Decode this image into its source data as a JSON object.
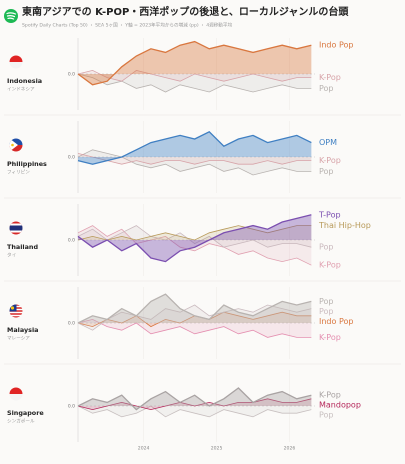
{
  "header": {
    "title": "東南アジアでの K-POP・西洋ポップの後退と、ローカルジャンルの台頭",
    "subtitle": "Spotify Daily Charts (Top 50) ・ SEA 5ヶ国 ・ Y軸 = 2023年平均からの増減 (pp) ・ 4週移動平均"
  },
  "chart_data": [
    {
      "type": "line",
      "country": "Indonesia",
      "country_ja": "インドネシア",
      "x": [
        2023.1,
        2023.3,
        2023.5,
        2023.7,
        2023.9,
        2024.1,
        2024.3,
        2024.5,
        2024.7,
        2024.9,
        2025.1,
        2025.3,
        2025.5,
        2025.7,
        2025.9,
        2026.1,
        2026.3
      ],
      "xlim": [
        2023.1,
        2026.35
      ],
      "ylim": [
        -10,
        10
      ],
      "yticks": [
        {
          "value": 0,
          "label": "0.0"
        }
      ],
      "series": [
        {
          "name": "Indo Pop",
          "color": "#d9773f",
          "values": [
            0,
            -3,
            -2,
            2,
            5,
            7,
            6,
            8,
            9,
            7,
            8,
            7,
            6,
            7,
            8,
            7,
            8
          ]
        },
        {
          "name": "K-Pop",
          "color": "#d7a3a8",
          "values": [
            0,
            1,
            -1,
            -2,
            1,
            0,
            -1,
            -2,
            0,
            -1,
            -2,
            -1,
            0,
            -1,
            -2,
            -1,
            -1
          ]
        },
        {
          "name": "Pop",
          "color": "#b8b3b0",
          "values": [
            0,
            -1,
            -3,
            -2,
            -4,
            -3,
            -5,
            -3,
            -4,
            -5,
            -3,
            -4,
            -5,
            -4,
            -3,
            -4,
            -4
          ]
        }
      ]
    },
    {
      "type": "line",
      "country": "Philippines",
      "country_ja": "フィリピン",
      "x": [
        2023.1,
        2023.3,
        2023.5,
        2023.7,
        2023.9,
        2024.1,
        2024.3,
        2024.5,
        2024.7,
        2024.9,
        2025.1,
        2025.3,
        2025.5,
        2025.7,
        2025.9,
        2026.1,
        2026.3
      ],
      "xlim": [
        2023.1,
        2026.35
      ],
      "ylim": [
        -10,
        10
      ],
      "yticks": [
        {
          "value": 0,
          "label": "0.0"
        }
      ],
      "series": [
        {
          "name": "OPM",
          "color": "#3f7fc2",
          "values": [
            -1,
            -2,
            -1,
            0,
            2,
            4,
            5,
            6,
            5,
            7,
            3,
            5,
            6,
            4,
            5,
            6,
            4
          ]
        },
        {
          "name": "K-Pop",
          "color": "#d7a3a8",
          "values": [
            1,
            0,
            -1,
            -2,
            -1,
            -2,
            -1,
            -1,
            -2,
            -1,
            -1,
            -2,
            -2,
            -1,
            -2,
            -1,
            -1
          ]
        },
        {
          "name": "Pop",
          "color": "#b8b3b0",
          "values": [
            0,
            2,
            1,
            0,
            -2,
            -3,
            -2,
            -4,
            -3,
            -2,
            -4,
            -3,
            -5,
            -4,
            -3,
            -4,
            -4
          ]
        }
      ]
    },
    {
      "type": "line",
      "country": "Thailand",
      "country_ja": "タイ",
      "x": [
        2023.1,
        2023.3,
        2023.5,
        2023.7,
        2023.9,
        2024.1,
        2024.3,
        2024.5,
        2024.7,
        2024.9,
        2025.1,
        2025.3,
        2025.5,
        2025.7,
        2025.9,
        2026.1,
        2026.3
      ],
      "xlim": [
        2023.1,
        2026.35
      ],
      "ylim": [
        -10,
        10
      ],
      "yticks": [
        {
          "value": 0,
          "label": "0.0"
        }
      ],
      "series": [
        {
          "name": "T-Pop",
          "color": "#7b4fb0",
          "values": [
            1,
            -2,
            0,
            -3,
            -1,
            -5,
            -6,
            -3,
            -2,
            0,
            2,
            3,
            4,
            3,
            5,
            6,
            7
          ]
        },
        {
          "name": "Thai Hip-Hop",
          "color": "#b89a5a",
          "values": [
            0,
            1,
            0,
            1,
            0,
            1,
            2,
            1,
            0,
            2,
            3,
            4,
            3,
            2,
            3,
            4,
            4
          ]
        },
        {
          "name": "Pop",
          "color": "#c9b8bd",
          "values": [
            1,
            3,
            0,
            2,
            4,
            1,
            0,
            2,
            -1,
            1,
            -2,
            -1,
            0,
            -2,
            -1,
            -1,
            -2
          ]
        },
        {
          "name": "K-Pop",
          "color": "#e0a0b0",
          "values": [
            2,
            4,
            1,
            3,
            -1,
            0,
            1,
            -2,
            -3,
            -1,
            -2,
            -4,
            -3,
            -5,
            -6,
            -5,
            -7
          ]
        }
      ]
    },
    {
      "type": "line",
      "country": "Malaysia",
      "country_ja": "マレーシア",
      "x": [
        2023.1,
        2023.3,
        2023.5,
        2023.7,
        2023.9,
        2024.1,
        2024.3,
        2024.5,
        2024.7,
        2024.9,
        2025.1,
        2025.3,
        2025.5,
        2025.7,
        2025.9,
        2026.1,
        2026.3
      ],
      "xlim": [
        2023.1,
        2026.35
      ],
      "ylim": [
        -10,
        10
      ],
      "yticks": [
        {
          "value": 0,
          "label": "0.0"
        }
      ],
      "series": [
        {
          "name": "Pop",
          "color": "#b8b3b0",
          "values": [
            0,
            2,
            1,
            4,
            2,
            6,
            8,
            4,
            2,
            1,
            5,
            3,
            2,
            4,
            6,
            5,
            6
          ]
        },
        {
          "name": "Pop",
          "color": "#cbbcc0",
          "values": [
            0,
            -2,
            1,
            3,
            2,
            1,
            4,
            3,
            5,
            2,
            3,
            4,
            3,
            5,
            4,
            3,
            4
          ]
        },
        {
          "name": "Indo Pop",
          "color": "#d9773f",
          "values": [
            0,
            -1,
            1,
            0,
            2,
            -1,
            1,
            0,
            2,
            1,
            3,
            2,
            1,
            2,
            3,
            2,
            2
          ]
        },
        {
          "name": "K-Pop",
          "color": "#e48fb0",
          "values": [
            0,
            1,
            -1,
            -2,
            0,
            -3,
            -2,
            -1,
            -3,
            -2,
            -1,
            -3,
            -2,
            -4,
            -3,
            -4,
            -4
          ]
        }
      ]
    },
    {
      "type": "line",
      "country": "Singapore",
      "country_ja": "シンガポール",
      "x": [
        2023.1,
        2023.3,
        2023.5,
        2023.7,
        2023.9,
        2024.1,
        2024.3,
        2024.5,
        2024.7,
        2024.9,
        2025.1,
        2025.3,
        2025.5,
        2025.7,
        2025.9,
        2026.1,
        2026.3
      ],
      "xlim": [
        2023.1,
        2026.35
      ],
      "ylim": [
        -10,
        10
      ],
      "yticks": [
        {
          "value": 0,
          "label": "0.0"
        }
      ],
      "xticks": [
        2024,
        2025,
        2026
      ],
      "series": [
        {
          "name": "K-Pop",
          "color": "#a9a3a3",
          "values": [
            0,
            2,
            1,
            3,
            -1,
            2,
            4,
            1,
            3,
            0,
            2,
            5,
            1,
            3,
            4,
            2,
            3
          ]
        },
        {
          "name": "Mandopop",
          "color": "#b5275a",
          "values": [
            0,
            -1,
            0,
            1,
            0,
            -1,
            0,
            1,
            0,
            1,
            0,
            1,
            1,
            2,
            1,
            1,
            2
          ]
        },
        {
          "name": "Pop",
          "color": "#c8c0c0",
          "values": [
            0,
            -2,
            -1,
            -3,
            -2,
            0,
            -3,
            -1,
            -2,
            -3,
            -1,
            -2,
            -3,
            -1,
            -2,
            -2,
            -1
          ]
        }
      ]
    }
  ]
}
